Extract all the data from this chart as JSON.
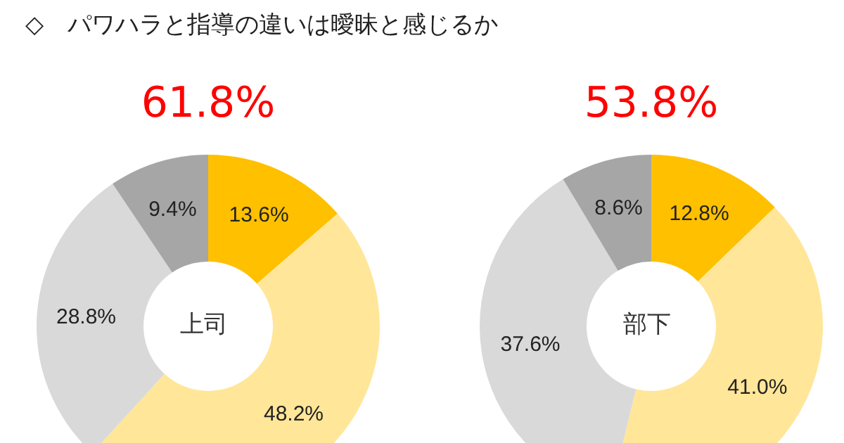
{
  "chart_data": [
    {
      "type": "donut",
      "title": "◇　パワハラと指導の違いは曖昧と感じるか",
      "subtitle": "61.8%",
      "annotations": [
        "上司"
      ],
      "categories": [
        null,
        null,
        null,
        null
      ],
      "values": [
        13.6,
        48.2,
        28.8,
        9.4
      ],
      "colors": [
        "#ffc000",
        "#ffe699",
        "#d9d9d9",
        "#a6a6a6"
      ],
      "value_labels": [
        "13.6%",
        "48.2%",
        "28.8%",
        "9.4%"
      ]
    },
    {
      "type": "donut",
      "subtitle": "53.8%",
      "annotations": [
        "部下"
      ],
      "categories": [
        null,
        null,
        null,
        null
      ],
      "values": [
        12.8,
        41.0,
        37.6,
        8.6
      ],
      "colors": [
        "#ffc000",
        "#ffe699",
        "#d9d9d9",
        "#a6a6a6"
      ],
      "value_labels": [
        "12.8%",
        "41.0%",
        "37.6%",
        "8.6%"
      ]
    }
  ]
}
